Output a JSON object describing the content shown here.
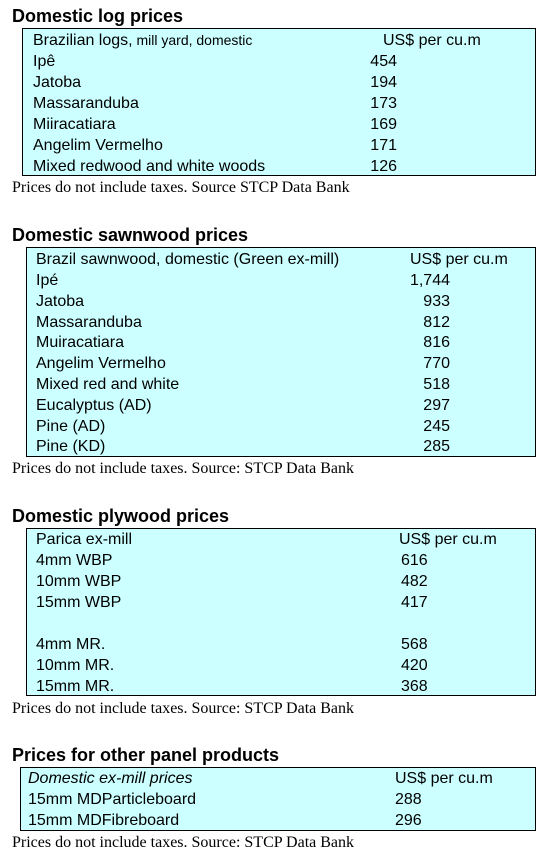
{
  "log": {
    "title": "Domestic log prices",
    "header": {
      "main": "Brazilian logs,",
      "sub": " mill yard, domestic",
      "unit": "US$ per cu.m"
    },
    "rows": [
      {
        "name": "Ipê",
        "value": "454"
      },
      {
        "name": "Jatoba",
        "value": "194"
      },
      {
        "name": "Massaranduba",
        "value": "173"
      },
      {
        "name": "Miiracatiara",
        "value": "169"
      },
      {
        "name": "Angelim Vermelho",
        "value": "171"
      },
      {
        "name": "Mixed redwood and white woods",
        "value": "126"
      }
    ],
    "note": "Prices do not include taxes. Source STCP Data Bank"
  },
  "sawn": {
    "title": "Domestic sawnwood prices",
    "header": {
      "label": "Brazil sawnwood, domestic (Green ex-mill)",
      "unit": "US$ per cu.m"
    },
    "rows": [
      {
        "name": "Ipé",
        "value": "1,744"
      },
      {
        "name": "Jatoba",
        "value": "933"
      },
      {
        "name": "Massaranduba",
        "value": "812"
      },
      {
        "name": "Muiracatiara",
        "value": "816"
      },
      {
        "name": "Angelim Vermelho",
        "value": "770"
      },
      {
        "name": "Mixed red and white",
        "value": "518"
      },
      {
        "name": "Eucalyptus (AD)",
        "value": "297"
      },
      {
        "name": "Pine (AD)",
        "value": "245"
      },
      {
        "name": "Pine (KD)",
        "value": "285"
      }
    ],
    "note": "Prices do not include taxes. Source: STCP Data Bank"
  },
  "plywood": {
    "title": "Domestic plywood prices",
    "header": {
      "label": "Parica ex-mill",
      "unit": "US$ per cu.m"
    },
    "rows_a": [
      {
        "name": "4mm WBP",
        "value": "616"
      },
      {
        "name": "10mm WBP",
        "value": "482"
      },
      {
        "name": "15mm WBP",
        "value": "417"
      }
    ],
    "rows_b": [
      {
        "name": "4mm MR.",
        "value": "568"
      },
      {
        "name": "10mm MR.",
        "value": "420"
      },
      {
        "name": "15mm MR.",
        "value": "368"
      }
    ],
    "note": "Prices do not include taxes. Source: STCP Data Bank"
  },
  "panel": {
    "title": "Prices for other panel products",
    "header": {
      "label": "Domestic ex-mill prices",
      "unit": "US$ per cu.m"
    },
    "rows": [
      {
        "name": "15mm MDParticleboard",
        "value": "288"
      },
      {
        "name": "15mm MDFibreboard",
        "value": "296"
      }
    ],
    "note": "Prices do not include taxes. Source: STCP Data Bank"
  }
}
